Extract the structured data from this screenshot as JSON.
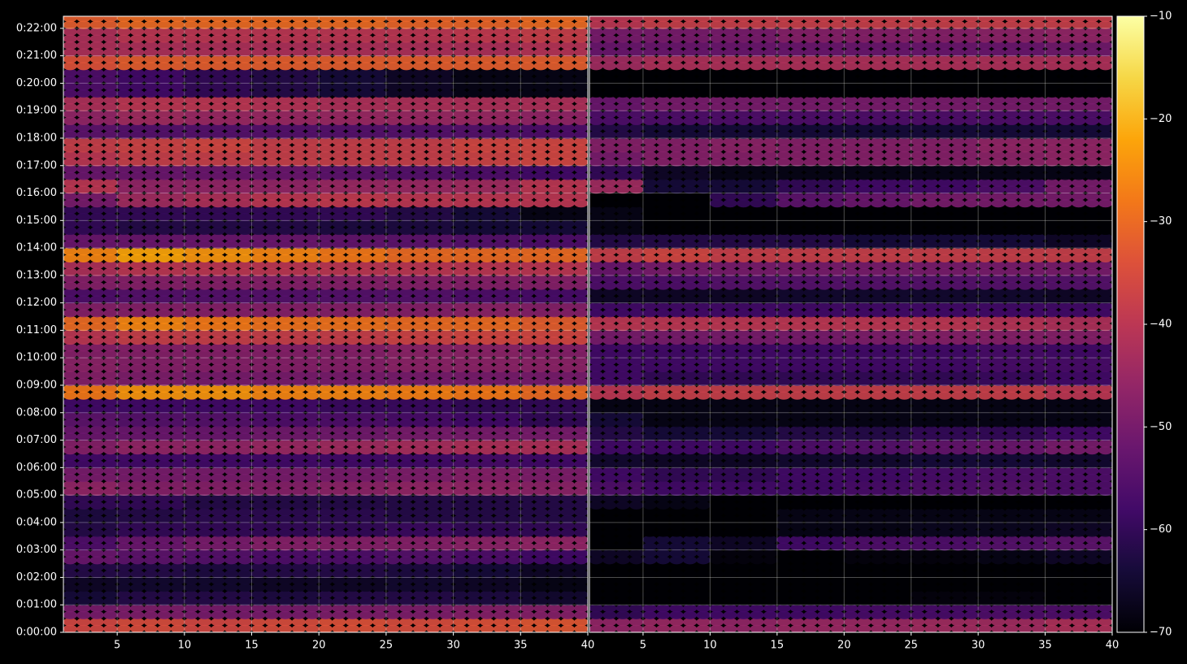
{
  "chart_data": {
    "type": "heatmap",
    "colormap": "inferno",
    "grid": true,
    "y": [
      0.25,
      0.75,
      1.25,
      1.75,
      2.25,
      2.75,
      3.25,
      3.75,
      4.25,
      4.75,
      5.25,
      5.75,
      6.25,
      6.75,
      7.25,
      7.75,
      8.25,
      8.75,
      9.25,
      9.75,
      10.25,
      10.75,
      11.25,
      11.75,
      12.25,
      12.75,
      13.25,
      13.75,
      14.25,
      14.75,
      15.25,
      15.75,
      16.25,
      16.75,
      17.25,
      17.75,
      18.25,
      18.75,
      19.25,
      19.75,
      20.25,
      20.75,
      21.25,
      21.75,
      22.25
    ],
    "xbins": [
      1,
      5,
      10,
      15,
      20,
      25,
      30,
      35,
      40
    ],
    "xlim": [
      1,
      40
    ],
    "xticks": [
      5,
      10,
      15,
      20,
      25,
      30,
      35,
      40
    ],
    "ylim": [
      0,
      22.44
    ],
    "yticks": [
      {
        "value": 0,
        "label": "0:00:00"
      },
      {
        "value": 1,
        "label": "0:01:00"
      },
      {
        "value": 2,
        "label": "0:02:00"
      },
      {
        "value": 3,
        "label": "0:03:00"
      },
      {
        "value": 4,
        "label": "0:04:00"
      },
      {
        "value": 5,
        "label": "0:05:00"
      },
      {
        "value": 6,
        "label": "0:06:00"
      },
      {
        "value": 7,
        "label": "0:07:00"
      },
      {
        "value": 8,
        "label": "0:08:00"
      },
      {
        "value": 9,
        "label": "0:09:00"
      },
      {
        "value": 10,
        "label": "0:10:00"
      },
      {
        "value": 11,
        "label": "0:11:00"
      },
      {
        "value": 12,
        "label": "0:12:00"
      },
      {
        "value": 13,
        "label": "0:13:00"
      },
      {
        "value": 14,
        "label": "0:14:00"
      },
      {
        "value": 15,
        "label": "0:15:00"
      },
      {
        "value": 16,
        "label": "0:16:00"
      },
      {
        "value": 17,
        "label": "0:17:00"
      },
      {
        "value": 18,
        "label": "0:18:00"
      },
      {
        "value": 19,
        "label": "0:19:00"
      },
      {
        "value": 20,
        "label": "0:20:00"
      },
      {
        "value": 21,
        "label": "0:21:00"
      },
      {
        "value": 22,
        "label": "0:22:00"
      }
    ],
    "clim": [
      -70,
      -10
    ],
    "cticks": [
      {
        "value": -70,
        "label": "−70"
      },
      {
        "value": -60,
        "label": "−60"
      },
      {
        "value": -50,
        "label": "−50"
      },
      {
        "value": -40,
        "label": "−40"
      },
      {
        "value": -30,
        "label": "−30"
      },
      {
        "value": -20,
        "label": "−20"
      },
      {
        "value": -10,
        "label": "−10"
      }
    ],
    "panels": [
      {
        "z": [
          [
            -36,
            -35,
            -36,
            -35,
            -34,
            -35,
            -34,
            -33
          ],
          [
            -50,
            -49,
            -50,
            -50,
            -49,
            -49,
            -48,
            -48
          ],
          [
            -64,
            -62,
            -62,
            -63,
            -62,
            -62,
            -63,
            -65
          ],
          [
            -66,
            -65,
            -65,
            -66,
            -66,
            -65,
            -66,
            -68
          ],
          [
            -62,
            -62,
            -63,
            -62,
            -62,
            -63,
            -64,
            -66
          ],
          [
            -52,
            -54,
            -55,
            -56,
            -56,
            -55,
            -56,
            -58
          ],
          [
            -56,
            -52,
            -50,
            -48,
            -48,
            -48,
            -47,
            -46
          ],
          [
            -62,
            -60,
            -60,
            -60,
            -60,
            -59,
            -60,
            -60
          ],
          [
            -63,
            -62,
            -61,
            -61,
            -61,
            -62,
            -62,
            -62
          ],
          [
            -60,
            -60,
            -62,
            -62,
            -62,
            -62,
            -62,
            -62
          ],
          [
            -46,
            -48,
            -48,
            -48,
            -47,
            -46,
            -46,
            -47
          ],
          [
            -50,
            -50,
            -50,
            -50,
            -50,
            -49,
            -48,
            -49
          ],
          [
            -58,
            -58,
            -58,
            -58,
            -58,
            -58,
            -57,
            -58
          ],
          [
            -48,
            -46,
            -46,
            -45,
            -44,
            -43,
            -42,
            -42
          ],
          [
            -52,
            -52,
            -52,
            -51,
            -51,
            -50,
            -50,
            -50
          ],
          [
            -54,
            -55,
            -55,
            -56,
            -56,
            -57,
            -58,
            -60
          ],
          [
            -58,
            -58,
            -58,
            -58,
            -59,
            -59,
            -60,
            -60
          ],
          [
            -28,
            -24,
            -24,
            -26,
            -26,
            -27,
            -28,
            -30
          ],
          [
            -48,
            -49,
            -50,
            -50,
            -50,
            -50,
            -50,
            -50
          ],
          [
            -47,
            -48,
            -48,
            -48,
            -48,
            -47,
            -47,
            -47
          ],
          [
            -48,
            -48,
            -48,
            -48,
            -48,
            -47,
            -47,
            -48
          ],
          [
            -40,
            -38,
            -38,
            -38,
            -38,
            -37,
            -36,
            -36
          ],
          [
            -30,
            -26,
            -28,
            -29,
            -29,
            -30,
            -30,
            -32
          ],
          [
            -48,
            -48,
            -48,
            -48,
            -48,
            -48,
            -47,
            -48
          ],
          [
            -56,
            -55,
            -55,
            -55,
            -55,
            -55,
            -56,
            -57
          ],
          [
            -48,
            -48,
            -48,
            -48,
            -48,
            -48,
            -48,
            -48
          ],
          [
            -42,
            -40,
            -40,
            -40,
            -40,
            -40,
            -40,
            -40
          ],
          [
            -26,
            -22,
            -24,
            -26,
            -28,
            -30,
            -30,
            -30
          ],
          [
            -52,
            -52,
            -52,
            -52,
            -53,
            -54,
            -55,
            -56
          ],
          [
            -60,
            -62,
            -62,
            -62,
            -63,
            -63,
            -64,
            -64
          ],
          [
            -60,
            -60,
            -60,
            -60,
            -60,
            -62,
            -64,
            -68
          ],
          [
            -50,
            -44,
            -42,
            -40,
            -39,
            -40,
            -40,
            -40
          ],
          [
            -40,
            -46,
            -46,
            -46,
            -45,
            -45,
            -44,
            -40
          ],
          [
            -52,
            -52,
            -52,
            -52,
            -54,
            -55,
            -56,
            -58
          ],
          [
            -40,
            -38,
            -38,
            -38,
            -38,
            -38,
            -37,
            -36
          ],
          [
            -38,
            -37,
            -36,
            -38,
            -38,
            -38,
            -36,
            -36
          ],
          [
            -54,
            -55,
            -55,
            -55,
            -55,
            -55,
            -55,
            -56
          ],
          [
            -46,
            -44,
            -45,
            -45,
            -45,
            -45,
            -45,
            -46
          ],
          [
            -42,
            -40,
            -40,
            -41,
            -42,
            -42,
            -42,
            -42
          ],
          [
            -56,
            -58,
            -60,
            -62,
            -64,
            -66,
            -68,
            -68
          ],
          [
            -56,
            -58,
            -60,
            -62,
            -64,
            -66,
            -68,
            -68
          ],
          [
            -34,
            -32,
            -32,
            -32,
            -32,
            -32,
            -32,
            -32
          ],
          [
            -42,
            -42,
            -42,
            -42,
            -42,
            -42,
            -42,
            -41
          ],
          [
            -42,
            -40,
            -40,
            -40,
            -40,
            -40,
            -39,
            -38
          ],
          [
            -32,
            -30,
            -30,
            -30,
            -30,
            -31,
            -31,
            -30
          ]
        ]
      },
      {
        "z": [
          [
            -46,
            -45,
            -46,
            -45,
            -45,
            -44,
            -44,
            -42
          ],
          [
            -60,
            -58,
            -58,
            -58,
            -57,
            -57,
            -56,
            -56
          ],
          [
            -70,
            -70,
            -70,
            -70,
            -70,
            -69,
            -69,
            -70
          ],
          [
            -70,
            -70,
            -70,
            -70,
            -70,
            -70,
            -70,
            -70
          ],
          [
            -70,
            -70,
            -70,
            -70,
            -70,
            -70,
            -70,
            -70
          ],
          [
            -66,
            -64,
            -69,
            -70,
            -69,
            -69,
            -68,
            -66
          ],
          [
            -70,
            -64,
            -66,
            -58,
            -56,
            -56,
            -55,
            -54
          ],
          [
            -70,
            -70,
            -70,
            -68,
            -68,
            -67,
            -67,
            -66
          ],
          [
            -70,
            -70,
            -70,
            -68,
            -68,
            -68,
            -68,
            -68
          ],
          [
            -66,
            -68,
            -70,
            -70,
            -70,
            -70,
            -70,
            -70
          ],
          [
            -56,
            -58,
            -58,
            -58,
            -57,
            -56,
            -55,
            -56
          ],
          [
            -58,
            -60,
            -60,
            -58,
            -58,
            -57,
            -56,
            -56
          ],
          [
            -65,
            -66,
            -66,
            -65,
            -65,
            -64,
            -64,
            -65
          ],
          [
            -58,
            -58,
            -58,
            -56,
            -55,
            -53,
            -52,
            -50
          ],
          [
            -62,
            -64,
            -64,
            -62,
            -62,
            -60,
            -60,
            -58
          ],
          [
            -64,
            -68,
            -68,
            -68,
            -68,
            -68,
            -68,
            -68
          ],
          [
            -68,
            -68,
            -68,
            -68,
            -68,
            -68,
            -68,
            -68
          ],
          [
            -40,
            -38,
            -38,
            -38,
            -38,
            -38,
            -38,
            -40
          ],
          [
            -58,
            -60,
            -60,
            -60,
            -60,
            -60,
            -59,
            -58
          ],
          [
            -58,
            -58,
            -58,
            -58,
            -58,
            -58,
            -57,
            -57
          ],
          [
            -58,
            -58,
            -58,
            -58,
            -58,
            -58,
            -57,
            -58
          ],
          [
            -50,
            -50,
            -50,
            -50,
            -49,
            -48,
            -48,
            -48
          ],
          [
            -40,
            -40,
            -40,
            -40,
            -40,
            -40,
            -41,
            -42
          ],
          [
            -58,
            -58,
            -58,
            -58,
            -58,
            -58,
            -58,
            -58
          ],
          [
            -66,
            -66,
            -66,
            -65,
            -65,
            -65,
            -65,
            -66
          ],
          [
            -56,
            -56,
            -55,
            -55,
            -55,
            -55,
            -55,
            -55
          ],
          [
            -52,
            -50,
            -50,
            -50,
            -50,
            -50,
            -50,
            -50
          ],
          [
            -38,
            -36,
            -38,
            -38,
            -38,
            -38,
            -38,
            -38
          ],
          [
            -62,
            -62,
            -62,
            -62,
            -64,
            -64,
            -64,
            -66
          ],
          [
            -68,
            -70,
            -70,
            -70,
            -70,
            -70,
            -70,
            -70
          ],
          [
            -68,
            -70,
            -70,
            -70,
            -70,
            -70,
            -70,
            -70
          ],
          [
            -70,
            -70,
            -60,
            -54,
            -52,
            -50,
            -50,
            -50
          ],
          [
            -44,
            -64,
            -64,
            -60,
            -58,
            -58,
            -56,
            -50
          ],
          [
            -60,
            -66,
            -68,
            -68,
            -68,
            -68,
            -68,
            -68
          ],
          [
            -50,
            -48,
            -48,
            -48,
            -48,
            -48,
            -47,
            -46
          ],
          [
            -48,
            -48,
            -47,
            -48,
            -48,
            -48,
            -46,
            -46
          ],
          [
            -62,
            -64,
            -64,
            -64,
            -64,
            -64,
            -64,
            -64
          ],
          [
            -56,
            -56,
            -56,
            -56,
            -56,
            -56,
            -56,
            -56
          ],
          [
            -52,
            -50,
            -50,
            -50,
            -50,
            -50,
            -50,
            -50
          ],
          [
            -70,
            -70,
            -70,
            -70,
            -70,
            -70,
            -70,
            -70
          ],
          [
            -70,
            -70,
            -70,
            -70,
            -70,
            -70,
            -70,
            -70
          ],
          [
            -44,
            -42,
            -42,
            -42,
            -42,
            -42,
            -42,
            -42
          ],
          [
            -52,
            -52,
            -52,
            -52,
            -52,
            -52,
            -52,
            -51
          ],
          [
            -50,
            -50,
            -50,
            -48,
            -48,
            -48,
            -47,
            -46
          ],
          [
            -40,
            -38,
            -38,
            -38,
            -38,
            -38,
            -38,
            -38
          ]
        ]
      }
    ]
  }
}
